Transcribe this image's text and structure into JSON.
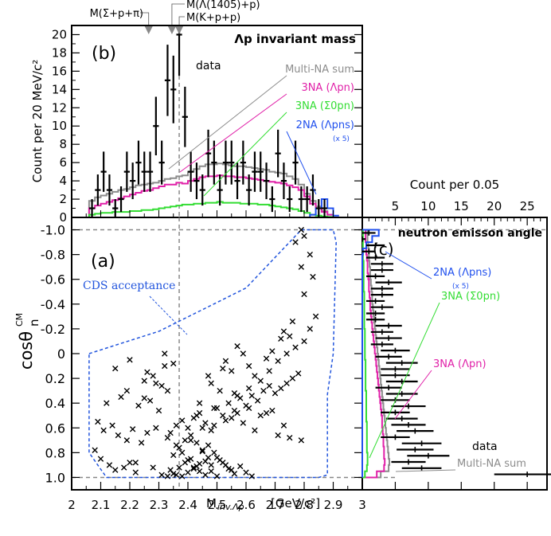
{
  "chart_data": [
    {
      "panel": "(b)",
      "type": "histogram",
      "title": "Λp invariant mass",
      "ylabel": "Count per 20 MeV/c²",
      "xlim": [
        2.0,
        3.0
      ],
      "ylim": [
        0,
        21
      ],
      "yticks": [
        0,
        2,
        4,
        6,
        8,
        10,
        12,
        14,
        16,
        18,
        20
      ],
      "thresholds": [
        {
          "label": "M(Σ+p+π)",
          "x": 2.265
        },
        {
          "label": "M(Λ(1405)+p)",
          "x": 2.345
        },
        {
          "label": "M(K+p+p)",
          "x": 2.37
        }
      ],
      "data_label": "data",
      "data": {
        "x": [
          2.07,
          2.09,
          2.11,
          2.13,
          2.15,
          2.17,
          2.19,
          2.21,
          2.23,
          2.25,
          2.27,
          2.29,
          2.31,
          2.33,
          2.35,
          2.37,
          2.39,
          2.41,
          2.43,
          2.45,
          2.47,
          2.49,
          2.51,
          2.53,
          2.55,
          2.57,
          2.59,
          2.61,
          2.63,
          2.65,
          2.67,
          2.69,
          2.71,
          2.73,
          2.75,
          2.77,
          2.79,
          2.81,
          2.83,
          2.85,
          2.87
        ],
        "y": [
          1,
          3,
          5,
          3,
          1,
          2,
          5,
          4,
          6,
          5,
          5,
          10,
          6,
          15,
          14,
          20,
          11,
          5,
          4,
          3,
          7,
          6,
          3,
          6,
          6,
          4,
          6,
          3,
          5,
          5,
          4,
          2,
          7,
          4,
          2,
          6,
          2,
          2,
          3,
          1,
          1
        ],
        "err": [
          1,
          1.7,
          2.2,
          1.7,
          1,
          1.4,
          2.2,
          2,
          2.4,
          2.2,
          2.2,
          3.2,
          2.4,
          3.9,
          3.7,
          4.5,
          3.3,
          2.2,
          2,
          1.7,
          2.6,
          2.4,
          1.7,
          2.4,
          2.4,
          2,
          2.4,
          1.7,
          2.2,
          2.2,
          2,
          1.4,
          2.6,
          2,
          1.4,
          2.4,
          1.4,
          1.4,
          1.7,
          1,
          1
        ]
      },
      "series": [
        {
          "name": "Multi-NA sum",
          "color": "#8c8c8c",
          "edges": [
            2.04,
            2.06,
            2.08,
            2.1,
            2.12,
            2.14,
            2.16,
            2.18,
            2.2,
            2.22,
            2.24,
            2.26,
            2.28,
            2.3,
            2.32,
            2.34,
            2.36,
            2.38,
            2.4,
            2.42,
            2.44,
            2.46,
            2.48,
            2.5,
            2.52,
            2.54,
            2.56,
            2.58,
            2.6,
            2.62,
            2.64,
            2.66,
            2.68,
            2.7,
            2.72,
            2.74,
            2.76,
            2.78,
            2.8,
            2.82,
            2.84,
            2.86,
            2.88,
            2.9,
            2.92
          ],
          "values": [
            0,
            1.8,
            2.2,
            2.4,
            2.6,
            2.8,
            3.0,
            3.1,
            3.3,
            3.5,
            3.6,
            3.7,
            3.8,
            4.0,
            4.2,
            4.3,
            4.5,
            4.6,
            5.0,
            5.3,
            5.6,
            5.8,
            5.8,
            5.9,
            5.8,
            5.7,
            5.6,
            5.6,
            5.5,
            5.4,
            5.3,
            5.2,
            5.0,
            4.9,
            4.8,
            4.5,
            4.2,
            3.6,
            2.6,
            1.8,
            1.2,
            0.7,
            0.3,
            0
          ]
        },
        {
          "name": "3NA (Λpn)",
          "color": "#e020a8",
          "edges": [
            2.04,
            2.06,
            2.08,
            2.1,
            2.12,
            2.14,
            2.16,
            2.18,
            2.2,
            2.22,
            2.24,
            2.26,
            2.28,
            2.3,
            2.32,
            2.34,
            2.36,
            2.38,
            2.4,
            2.42,
            2.44,
            2.46,
            2.48,
            2.5,
            2.52,
            2.54,
            2.56,
            2.58,
            2.6,
            2.62,
            2.64,
            2.66,
            2.68,
            2.7,
            2.72,
            2.74,
            2.76,
            2.78,
            2.8,
            2.82,
            2.84,
            2.86,
            2.88,
            2.9,
            2.92
          ],
          "values": [
            0,
            1.0,
            1.3,
            1.5,
            1.7,
            1.9,
            2.1,
            2.3,
            2.5,
            2.7,
            2.9,
            3.0,
            3.2,
            3.4,
            3.6,
            3.6,
            3.8,
            3.7,
            4.0,
            4.2,
            4.4,
            4.5,
            4.5,
            4.6,
            4.5,
            4.5,
            4.4,
            4.4,
            4.3,
            4.2,
            4.1,
            4.0,
            3.9,
            3.8,
            3.7,
            3.5,
            3.3,
            3.0,
            2.3,
            1.5,
            1.0,
            0.6,
            0.3,
            0
          ]
        },
        {
          "name": "3NA (Σ0pn)",
          "color": "#33dd33",
          "edges": [
            2.04,
            2.06,
            2.08,
            2.1,
            2.12,
            2.14,
            2.16,
            2.18,
            2.2,
            2.22,
            2.24,
            2.26,
            2.28,
            2.3,
            2.32,
            2.34,
            2.36,
            2.38,
            2.4,
            2.42,
            2.44,
            2.46,
            2.48,
            2.5,
            2.52,
            2.54,
            2.56,
            2.58,
            2.6,
            2.62,
            2.64,
            2.66,
            2.68,
            2.7,
            2.72,
            2.74,
            2.76,
            2.78,
            2.8,
            2.82,
            2.84,
            2.86,
            2.88,
            2.9,
            2.92
          ],
          "values": [
            0,
            0.3,
            0.4,
            0.5,
            0.5,
            0.6,
            0.6,
            0.6,
            0.7,
            0.7,
            0.8,
            0.8,
            0.9,
            1.0,
            1.1,
            1.2,
            1.3,
            1.4,
            1.4,
            1.5,
            1.5,
            1.6,
            1.6,
            1.7,
            1.6,
            1.6,
            1.6,
            1.5,
            1.5,
            1.5,
            1.4,
            1.4,
            1.3,
            1.2,
            1.1,
            1.0,
            0.9,
            0.7,
            0.5,
            0.3,
            0.2,
            0.1,
            0.05,
            0
          ]
        },
        {
          "name": "2NA (Λpns)",
          "note": "(x 5)",
          "color": "#2050ee",
          "edges": [
            2.8,
            2.82,
            2.84,
            2.86,
            2.88,
            2.9,
            2.92
          ],
          "values": [
            0,
            0.3,
            1.0,
            2.0,
            1.0,
            0.2
          ]
        }
      ]
    },
    {
      "panel": "(a)",
      "type": "scatter",
      "xlabel": "M",
      "xlabel_sub": "inv.Λp",
      "xlabel_unit": "[GeV/c²]",
      "ylabel": "cosθ",
      "ylabel_sup": "CM",
      "ylabel_sub": "n",
      "xlim": [
        2.0,
        3.0
      ],
      "ylim": [
        -1.1,
        1.1
      ],
      "xticks": [
        "2",
        "2.1",
        "2.2",
        "2.3",
        "2.4",
        "2.5",
        "2.6",
        "2.7",
        "2.8",
        "2.9",
        "3"
      ],
      "yticks": [
        "-1.0",
        "-0.8",
        "-0.6",
        "-0.4",
        "-0.2",
        "0",
        "0.2",
        "0.4",
        "0.6",
        "0.8",
        "1.0"
      ],
      "acceptance_label": "CDS acceptance",
      "acceptance_color": "#2255dd",
      "acceptance": [
        [
          2.06,
          0.0
        ],
        [
          2.3,
          -0.18
        ],
        [
          2.6,
          -0.53
        ],
        [
          2.79,
          -1.0
        ],
        [
          2.9,
          -1.0
        ],
        [
          2.91,
          -0.9
        ],
        [
          2.9,
          0.0
        ],
        [
          2.88,
          0.33
        ],
        [
          2.88,
          0.98
        ],
        [
          2.85,
          1.0
        ],
        [
          2.12,
          1.0
        ],
        [
          2.06,
          0.8
        ]
      ],
      "x": [
        2.08,
        2.1,
        2.13,
        2.15,
        2.18,
        2.2,
        2.22,
        2.09,
        2.11,
        2.14,
        2.16,
        2.19,
        2.21,
        2.24,
        2.26,
        2.12,
        2.17,
        2.23,
        2.27,
        2.3,
        2.25,
        2.28,
        2.31,
        2.33,
        2.15,
        2.2,
        2.26,
        2.32,
        2.35,
        2.29,
        2.33,
        2.36,
        2.38,
        2.4,
        2.42,
        2.44,
        2.46,
        2.48,
        2.5,
        2.52,
        2.54,
        2.56,
        2.58,
        2.6,
        2.62,
        2.35,
        2.37,
        2.39,
        2.41,
        2.43,
        2.45,
        2.47,
        2.34,
        2.36,
        2.38,
        2.4,
        2.42,
        2.44,
        2.46,
        2.48,
        2.5,
        2.33,
        2.35,
        2.37,
        2.39,
        2.41,
        2.43,
        2.45,
        2.47,
        2.49,
        2.51,
        2.53,
        2.55,
        2.34,
        2.36,
        2.38,
        2.4,
        2.42,
        2.44,
        2.46,
        2.48,
        2.5,
        2.52,
        2.54,
        2.56,
        2.58,
        2.6,
        2.62,
        2.64,
        2.66,
        2.68,
        2.7,
        2.72,
        2.74,
        2.76,
        2.78,
        2.8,
        2.82,
        2.84,
        2.71,
        2.74,
        2.77,
        2.8,
        2.83,
        2.68,
        2.72,
        2.76,
        2.79,
        2.82,
        2.65,
        2.69,
        2.73,
        2.77,
        2.8,
        2.63,
        2.67,
        2.75,
        2.79,
        2.57,
        2.61,
        2.69,
        2.73,
        2.51,
        2.55,
        2.59,
        2.47,
        2.53,
        2.57,
        2.61,
        2.44,
        2.48,
        2.52,
        2.56,
        2.43,
        2.49,
        2.55,
        2.59,
        2.63,
        2.67,
        2.71,
        2.75,
        2.79,
        2.41,
        2.45,
        2.49,
        2.53,
        2.57,
        2.61,
        2.65,
        2.22,
        2.28,
        2.31,
        2.19,
        2.25,
        2.29,
        2.32
      ],
      "y": [
        0.78,
        0.85,
        0.9,
        0.94,
        0.92,
        0.88,
        0.96,
        0.55,
        0.62,
        0.58,
        0.66,
        0.7,
        0.61,
        0.72,
        0.64,
        0.4,
        0.35,
        0.42,
        0.38,
        0.46,
        0.22,
        0.18,
        0.26,
        0.3,
        0.12,
        0.05,
        0.15,
        0.1,
        0.08,
        0.6,
        0.68,
        0.74,
        0.8,
        0.86,
        0.92,
        0.95,
        0.98,
        0.9,
        0.84,
        0.88,
        0.93,
        0.97,
        0.91,
        0.96,
        0.99,
        0.82,
        0.76,
        0.7,
        0.66,
        0.72,
        0.78,
        0.84,
        0.94,
        0.98,
        0.99,
        0.96,
        0.93,
        0.89,
        0.87,
        0.95,
        0.99,
        0.99,
        0.97,
        0.92,
        0.88,
        0.85,
        0.91,
        0.79,
        0.74,
        0.8,
        0.86,
        0.9,
        0.94,
        0.64,
        0.58,
        0.54,
        0.6,
        0.52,
        0.48,
        0.56,
        0.62,
        0.44,
        0.5,
        0.4,
        0.46,
        0.36,
        0.42,
        0.34,
        0.38,
        0.3,
        0.26,
        0.32,
        0.28,
        0.24,
        0.2,
        0.16,
        -0.1,
        -0.2,
        -0.3,
        0.06,
        0.0,
        -0.05,
        -0.48,
        -0.62,
        0.14,
        -0.12,
        -0.26,
        -0.7,
        -0.8,
        0.22,
        -0.02,
        -0.18,
        -0.9,
        -0.95,
        0.18,
        0.04,
        -0.14,
        -1.0,
        0.34,
        0.28,
        0.46,
        0.58,
        0.3,
        0.14,
        0.0,
        0.18,
        0.06,
        -0.06,
        0.1,
        0.4,
        0.24,
        0.12,
        0.32,
        0.5,
        0.44,
        0.52,
        0.56,
        0.62,
        0.48,
        0.66,
        0.68,
        0.7,
        0.7,
        0.6,
        0.58,
        0.54,
        0.48,
        0.44,
        0.5,
        0.88,
        0.92,
        0.98,
        0.3,
        0.36,
        0.24,
        0.0
      ]
    },
    {
      "panel": "(c)",
      "type": "histogram-horizontal",
      "title": "neutron emisson angle",
      "xlabel": "Count per 0.05",
      "xticks": [
        "5",
        "10",
        "15",
        "20",
        "25"
      ],
      "xlim": [
        0,
        28
      ],
      "ylim": [
        -1.1,
        1.1
      ],
      "data_label": "data",
      "data": {
        "y": [
          -0.975,
          -0.925,
          -0.875,
          -0.825,
          -0.775,
          -0.725,
          -0.675,
          -0.625,
          -0.575,
          -0.525,
          -0.475,
          -0.425,
          -0.375,
          -0.325,
          -0.275,
          -0.225,
          -0.175,
          -0.125,
          -0.075,
          -0.025,
          0.025,
          0.075,
          0.125,
          0.175,
          0.225,
          0.275,
          0.325,
          0.375,
          0.425,
          0.475,
          0.525,
          0.575,
          0.625,
          0.675,
          0.725,
          0.775,
          0.825,
          0.875,
          0.925,
          0.975
        ],
        "x": [
          1,
          0,
          2,
          1,
          2,
          3,
          3,
          2,
          4,
          3,
          3,
          2,
          3,
          2,
          2,
          4,
          3,
          4,
          3,
          5,
          4,
          6,
          5,
          5,
          6,
          4,
          6,
          5,
          7,
          5,
          6,
          7,
          8,
          5,
          9,
          8,
          10,
          7,
          9,
          25
        ],
        "err": [
          1,
          0.5,
          1.4,
          1,
          1.4,
          1.7,
          1.7,
          1.4,
          2,
          1.7,
          1.7,
          1.4,
          1.7,
          1.4,
          1.4,
          2,
          1.7,
          2,
          1.7,
          2.2,
          2,
          2.4,
          2.2,
          2.2,
          2.4,
          2,
          2.4,
          2.2,
          2.6,
          2.2,
          2.4,
          2.6,
          2.8,
          2.2,
          3,
          2.8,
          3.2,
          2.6,
          3,
          5
        ]
      },
      "series": [
        {
          "name": "Multi-NA sum",
          "color": "#8c8c8c",
          "values": [
            0.8,
            0.8,
            0.9,
            1.0,
            1.0,
            1.1,
            1.2,
            1.2,
            1.3,
            1.4,
            1.5,
            1.5,
            1.6,
            1.7,
            1.8,
            1.9,
            2.0,
            2.1,
            2.2,
            2.3,
            2.4,
            2.5,
            2.6,
            2.7,
            2.8,
            2.9,
            3.0,
            3.1,
            3.2,
            3.3,
            3.4,
            3.5,
            3.6,
            3.7,
            3.8,
            3.9,
            4.0,
            4.1,
            4.0,
            2.8
          ]
        },
        {
          "name": "3NA (Λpn)",
          "color": "#e020a8",
          "values": [
            0.5,
            0.5,
            0.6,
            0.6,
            0.7,
            0.8,
            0.8,
            0.9,
            1.0,
            1.0,
            1.1,
            1.2,
            1.2,
            1.3,
            1.4,
            1.5,
            1.6,
            1.7,
            1.8,
            1.9,
            2.0,
            2.1,
            2.2,
            2.3,
            2.4,
            2.5,
            2.6,
            2.7,
            2.8,
            2.9,
            3.0,
            3.0,
            3.1,
            3.2,
            3.2,
            3.3,
            3.3,
            3.4,
            3.3,
            2.2
          ]
        },
        {
          "name": "3NA (Σ0pn)",
          "color": "#33dd33",
          "values": [
            0.1,
            0.1,
            0.1,
            0.1,
            0.1,
            0.2,
            0.2,
            0.2,
            0.2,
            0.2,
            0.3,
            0.3,
            0.3,
            0.3,
            0.3,
            0.3,
            0.4,
            0.4,
            0.4,
            0.4,
            0.4,
            0.5,
            0.5,
            0.5,
            0.5,
            0.5,
            0.6,
            0.6,
            0.6,
            0.6,
            0.6,
            0.7,
            0.7,
            0.7,
            0.7,
            0.7,
            0.8,
            0.8,
            0.7,
            0.4
          ]
        },
        {
          "name": "2NA (Λpns)",
          "note": "(x 5)",
          "color": "#2050ee",
          "values": [
            2.5,
            1.5,
            0.6,
            0.1,
            0,
            0,
            0,
            0,
            0,
            0,
            0,
            0,
            0,
            0,
            0,
            0,
            0,
            0,
            0,
            0,
            0,
            0,
            0,
            0,
            0,
            0,
            0,
            0,
            0,
            0,
            0,
            0,
            0,
            0,
            0,
            0,
            0,
            0,
            0,
            0
          ]
        }
      ]
    }
  ],
  "labels": {
    "panel_b": "(b)",
    "panel_a": "(a)",
    "panel_c": "(c)"
  },
  "colors": {
    "dashed_guides": "#888888",
    "axis": "#000000"
  }
}
